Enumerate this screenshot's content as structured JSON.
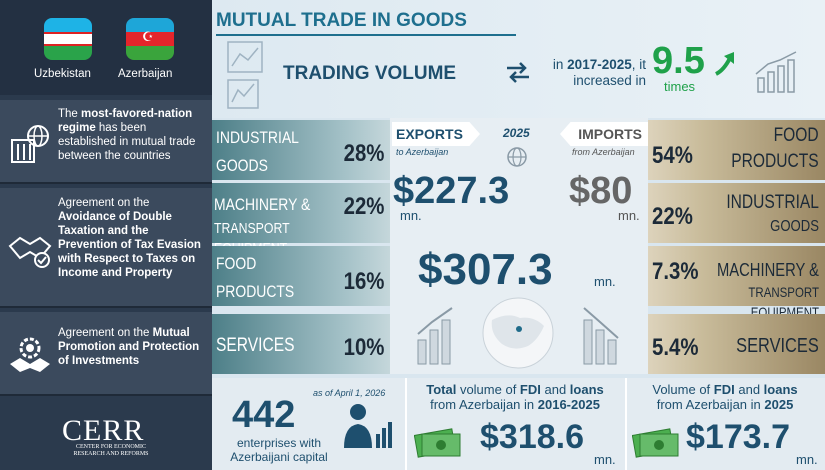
{
  "sidebar": {
    "countries": [
      "Uzbekistan",
      "Azerbaijan"
    ],
    "mfn": {
      "pre": "The ",
      "bold": "most-favored-nation regime",
      "post": " has been established in mutual trade between the countries"
    },
    "dta": {
      "pre": "Agreement on the ",
      "bold": "Avoidance of Double Taxation and the Prevention of Tax Evasion with Respect to Taxes on Income and Property"
    },
    "inv": {
      "pre": "Agreement on the ",
      "bold": "Mutual Promotion and Protection of Investments"
    },
    "logo": "CERR",
    "logo_sub": "CENTER FOR ECONOMIC RESEARCH AND REFORMS"
  },
  "header": {
    "title": "MUTUAL TRADE IN GOODS",
    "trading_volume": "TRADING VOLUME",
    "inc_pre": "in ",
    "inc_years": "2017-2025",
    "inc_post": ", it increased in",
    "times_value": "9.5",
    "times_label": "times"
  },
  "exports": {
    "label": "EXPORTS",
    "sub": "to Azerbaijan",
    "value": "$227.3",
    "unit": "mn.",
    "items": [
      {
        "name1": "INDUSTRIAL",
        "name2": "GOODS",
        "pct": "28%"
      },
      {
        "name1": "MACHINERY &",
        "name2": "TRANSPORT EQUIPMENT",
        "pct": "22%"
      },
      {
        "name1": "FOOD",
        "name2": "PRODUCTS",
        "pct": "16%"
      },
      {
        "name1": "SERVICES",
        "name2": "",
        "pct": "10%"
      }
    ]
  },
  "imports": {
    "label": "IMPORTS",
    "sub": "from Azerbaijan",
    "value": "$80",
    "unit": "mn.",
    "items": [
      {
        "name1": "FOOD",
        "name2": "PRODUCTS",
        "pct": "54%"
      },
      {
        "name1": "INDUSTRIAL",
        "name2": "GOODS",
        "pct": "22%"
      },
      {
        "name1": "MACHINERY &",
        "name2": "TRANSPORT EQUIPMENT",
        "pct": "7.3%"
      },
      {
        "name1": "SERVICES",
        "name2": "",
        "pct": "5.4%"
      }
    ]
  },
  "center": {
    "year": "2025",
    "total": "$307.3",
    "total_unit": "mn."
  },
  "bottom": {
    "asof": "as of April 1, 2026",
    "enterprises": "442",
    "ent_text": "enterprises with Azerbaijani capital",
    "fdi1": {
      "b1": "Total",
      "t1": " volume of ",
      "b2": "FDI",
      "t2": " and ",
      "b3": "loans",
      "line2": "from Azerbaijan in ",
      "years": "2016-2025",
      "value": "$318.6",
      "unit": "mn."
    },
    "fdi2": {
      "t1": "Volume of ",
      "b2": "FDI",
      "t2": " and ",
      "b3": "loans",
      "line2": "from Azerbaijan in ",
      "years": "2025",
      "value": "$173.7",
      "unit": "mn."
    }
  },
  "colors": {
    "accent": "#1e4f6e",
    "green": "#1fa14a",
    "sidebar": "#2b3a4d"
  }
}
